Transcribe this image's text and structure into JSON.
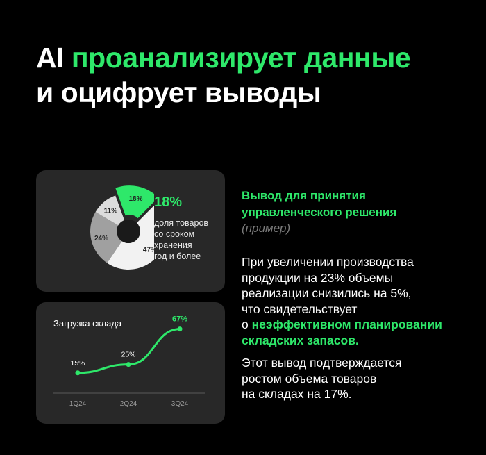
{
  "headline": {
    "line1_plain": "AI ",
    "line1_accent": "проанализирует данные",
    "line2": "и оцифрует выводы"
  },
  "pie_card": {
    "stat_value": "18%",
    "stat_lines": [
      "доля товаров",
      "со сроком",
      "хранения",
      "год и более"
    ]
  },
  "line_card": {
    "title": "Загрузка склада"
  },
  "conclusion": {
    "title_lines": [
      "Вывод для принятия",
      "управленческого решения"
    ],
    "subtitle": "(пример)",
    "p1_lines": [
      "При увеличении производства",
      "продукции на 23% объемы",
      "реализации снизились на 5%,",
      "что свидетельствует"
    ],
    "p1_prefix": "о ",
    "p1_accent_line1": "неэффективном планировании",
    "p1_accent_line2": "складских запасов.",
    "p2_lines": [
      "Этот вывод подтверждается",
      "ростом объема товаров",
      "на складах на 17%."
    ]
  },
  "colors": {
    "accent": "#2ee86a",
    "card_bg": "#282828",
    "background": "#000000"
  },
  "chart_data": [
    {
      "type": "pie",
      "categories": [
        "18%",
        "47%",
        "24%",
        "11%"
      ],
      "values": [
        18,
        47,
        24,
        11
      ],
      "colors": [
        "#2ee86a",
        "#f2f2f2",
        "#a0a0a0",
        "#dcdcdc"
      ],
      "title": ""
    },
    {
      "type": "line",
      "categories": [
        "1Q24",
        "2Q24",
        "3Q24"
      ],
      "series": [
        {
          "values": [
            15,
            25,
            67
          ]
        }
      ],
      "data_labels": [
        "15%",
        "25%",
        "67%"
      ],
      "title": "Загрузка склада",
      "xlabel": "",
      "ylabel": "",
      "ylim": [
        0,
        70
      ]
    }
  ]
}
